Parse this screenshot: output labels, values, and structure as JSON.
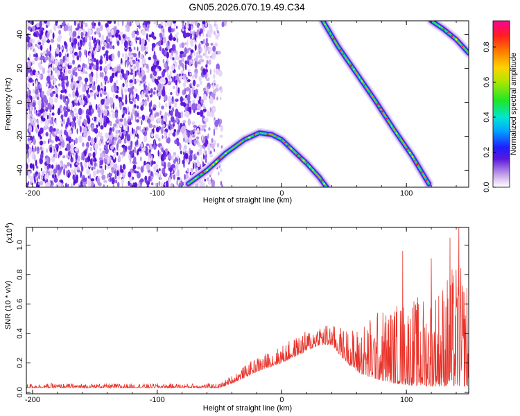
{
  "title": "GN05.2026.070.19.49.C34",
  "chart_data": [
    {
      "type": "heatmap",
      "xlabel": "Height of straight line (km)",
      "ylabel": "Frequency (Hz)",
      "xlim": [
        -205,
        150
      ],
      "ylim": [
        -50,
        48
      ],
      "xticks": [
        -200,
        -100,
        0,
        100
      ],
      "yticks": [
        -40,
        -20,
        0,
        20,
        40
      ],
      "colorbar": {
        "label": "Normalized spectral amplitude",
        "range": [
          0,
          0.95
        ],
        "ticks": [
          0.0,
          0.2,
          0.4,
          0.6,
          0.8
        ],
        "tick_labels": [
          "0.0",
          "0.2",
          "0.4",
          "0.6",
          "0.8"
        ]
      },
      "noise_region_x": [
        -205,
        -45
      ],
      "traces": [
        {
          "x": [
            -75,
            -60,
            -45,
            -30,
            -18,
            -8,
            0,
            10,
            20,
            30,
            36
          ],
          "y": [
            -48,
            -40,
            -30,
            -22,
            -18,
            -19,
            -22,
            -29,
            -36,
            -44,
            -50
          ]
        },
        {
          "x": [
            33,
            45,
            60,
            75,
            90,
            105,
            118
          ],
          "y": [
            48,
            33,
            17,
            1,
            -16,
            -32,
            -48
          ]
        },
        {
          "x": [
            120,
            130,
            140,
            150
          ],
          "y": [
            48,
            43,
            37,
            29
          ]
        }
      ]
    },
    {
      "type": "line",
      "xlabel": "Height of straight line (km)",
      "ylabel": "SNR (10 * v/v)",
      "y_multiplier": "(x10",
      "y_multiplier_exp": "4",
      "y_multiplier_close": ")",
      "xlim": [
        -205,
        150
      ],
      "ylim": [
        -0.01,
        1.12
      ],
      "xticks": [
        -200,
        -100,
        0,
        100
      ],
      "yticks": [
        0.0,
        0.2,
        0.4,
        0.6,
        0.8,
        1.0
      ],
      "ytick_labels": [
        "0.0",
        "0.2",
        "0.4",
        "0.6",
        "0.8",
        "1.0"
      ],
      "series": [
        {
          "color": "#e8332a",
          "envelope": {
            "x": [
              -205,
              -50,
              -40,
              -20,
              0,
              20,
              30,
              40,
              50,
              60,
              70,
              80,
              90,
              100,
              110,
              120,
              130,
              140,
              150
            ],
            "base": [
              0.03,
              0.03,
              0.06,
              0.14,
              0.2,
              0.28,
              0.32,
              0.32,
              0.22,
              0.14,
              0.1,
              0.08,
              0.06,
              0.05,
              0.04,
              0.04,
              0.04,
              0.04,
              0.04
            ],
            "amp": [
              0.03,
              0.03,
              0.06,
              0.1,
              0.12,
              0.14,
              0.16,
              0.14,
              0.22,
              0.3,
              0.42,
              0.5,
              0.55,
              0.6,
              0.62,
              0.65,
              0.75,
              0.85,
              0.75
            ]
          },
          "peaks": [
            {
              "x": 142,
              "y": 1.12
            },
            {
              "x": 135,
              "y": 1.05
            },
            {
              "x": 97,
              "y": 0.96
            },
            {
              "x": 120,
              "y": 0.91
            }
          ]
        }
      ]
    }
  ]
}
